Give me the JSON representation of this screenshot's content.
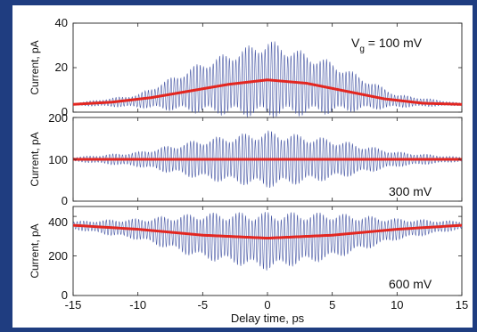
{
  "chart_data": {
    "type": "line",
    "xlabel": "Delay time, ps",
    "xlim": [
      -15,
      15
    ],
    "xticks": [
      "-15",
      "-10",
      "-5",
      "0",
      "5",
      "10",
      "15"
    ],
    "colors": {
      "oscillation": "#4a5aa6",
      "envelope": "#e32620",
      "background": "#1f3d80"
    },
    "panels": [
      {
        "ylabel": "Current, pA",
        "ylim": [
          0,
          40
        ],
        "yticks": [
          "0",
          "20",
          "40"
        ],
        "annotation": "V",
        "annotation_sub": "g",
        "annotation_rest": " = 100 mV",
        "annotation_position": "top-right",
        "smooth_curve": {
          "x": [
            -15,
            -12,
            -9,
            -6,
            -3,
            0,
            3,
            6,
            9,
            12,
            15
          ],
          "y": [
            3.5,
            4.5,
            6.5,
            9.5,
            12.5,
            14.5,
            13,
            9.5,
            6,
            4,
            3.5
          ]
        },
        "oscillation": {
          "center": {
            "x": [
              -15,
              -10,
              -5,
              0,
              5,
              10,
              15
            ],
            "y": [
              3.5,
              5,
              11,
              15,
              11,
              5,
              3.5
            ]
          },
          "amplitude": {
            "x": [
              -15,
              -10,
              -5,
              0,
              5,
              10,
              15
            ],
            "y": [
              0.5,
              3,
              12,
              18,
              12,
              3,
              0.5
            ]
          }
        }
      },
      {
        "ylabel": "Current, pA",
        "ylim": [
          0,
          200
        ],
        "yticks": [
          "0",
          "100",
          "200"
        ],
        "annotation": "300 mV",
        "annotation_position": "bottom-right",
        "smooth_curve": {
          "x": [
            -15,
            -10,
            -5,
            0,
            5,
            10,
            15
          ],
          "y": [
            100,
            100,
            100,
            100,
            100,
            100,
            100
          ]
        },
        "oscillation": {
          "center": {
            "x": [
              -15,
              -10,
              -5,
              0,
              5,
              10,
              15
            ],
            "y": [
              100,
              100,
              100,
              100,
              100,
              100,
              100
            ]
          },
          "amplitude": {
            "x": [
              -15,
              -10,
              -5,
              0,
              5,
              10,
              15
            ],
            "y": [
              5,
              18,
              50,
              70,
              50,
              18,
              5
            ]
          }
        }
      },
      {
        "ylabel": "Current, pA",
        "ylim": [
          0,
          450
        ],
        "yticks": [
          "0",
          "200",
          "400"
        ],
        "annotation": "600 mV",
        "annotation_position": "bottom-right",
        "smooth_curve": {
          "x": [
            -15,
            -10,
            -5,
            0,
            5,
            10,
            15
          ],
          "y": [
            355,
            335,
            305,
            290,
            305,
            335,
            355
          ]
        },
        "oscillation": {
          "center": {
            "x": [
              -15,
              -10,
              -5,
              0,
              5,
              10,
              15
            ],
            "y": [
              355,
              335,
              300,
              275,
              300,
              335,
              355
            ]
          },
          "amplitude": {
            "x": [
              -15,
              -10,
              -5,
              0,
              5,
              10,
              15
            ],
            "y": [
              20,
              55,
              120,
              150,
              120,
              55,
              20
            ]
          }
        }
      }
    ]
  }
}
